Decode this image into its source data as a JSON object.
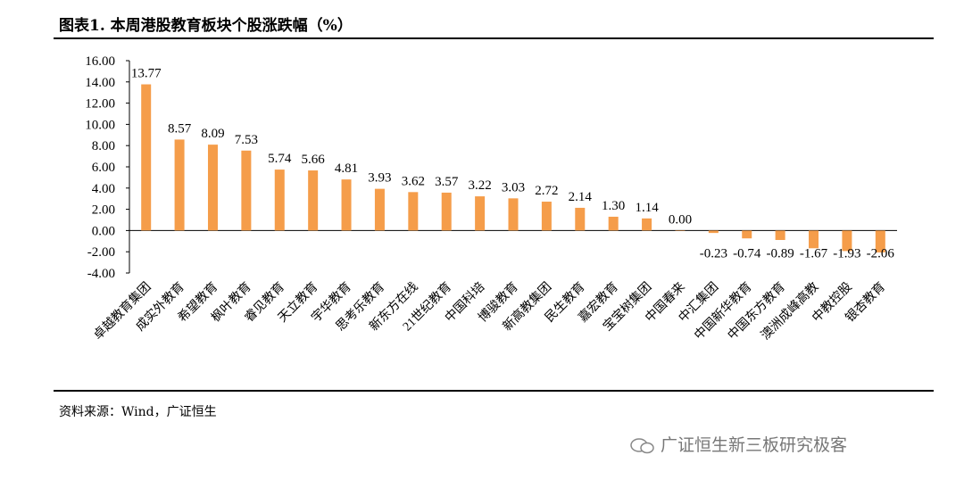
{
  "title": "图表1. 本周港股教育板块个股涨跌幅（%）",
  "source": "资料来源：Wind，广证恒生",
  "watermark": "广证恒生新三板研究极客",
  "colors": {
    "bar": "#F59D4A"
  },
  "chart_data": {
    "type": "bar",
    "title": "本周港股教育板块个股涨跌幅（%）",
    "xlabel": "",
    "ylabel": "",
    "ylim": [
      -4,
      16
    ],
    "yticks": [
      "16.00",
      "14.00",
      "12.00",
      "10.00",
      "8.00",
      "6.00",
      "4.00",
      "2.00",
      "0.00",
      "-2.00",
      "-4.00"
    ],
    "categories": [
      "卓越教育集团",
      "成实外教育",
      "希望教育",
      "枫叶教育",
      "睿见教育",
      "天立教育",
      "宇华教育",
      "思考乐教育",
      "新东方在线",
      "21世纪教育",
      "中国科培",
      "博骏教育",
      "新高教集团",
      "民生教育",
      "嘉宏教育",
      "宝宝树集团",
      "中国春来",
      "中汇集团",
      "中国新华教育",
      "中国东方教育",
      "澳洲成峰高教",
      "中教控股",
      "银杏教育"
    ],
    "values": [
      13.77,
      8.57,
      8.09,
      7.53,
      5.74,
      5.66,
      4.81,
      3.93,
      3.62,
      3.57,
      3.22,
      3.03,
      2.72,
      2.14,
      1.3,
      1.14,
      0.0,
      -0.23,
      -0.74,
      -0.89,
      -1.67,
      -1.93,
      -2.06
    ],
    "labels": [
      "13.77",
      "8.57",
      "8.09",
      "7.53",
      "5.74",
      "5.66",
      "4.81",
      "3.93",
      "3.62",
      "3.57",
      "3.22",
      "3.03",
      "2.72",
      "2.14",
      "1.30",
      "1.14",
      "0.00",
      "-0.23",
      "-0.74",
      "-0.89",
      "-1.67",
      "-1.93",
      "-2.06"
    ]
  }
}
